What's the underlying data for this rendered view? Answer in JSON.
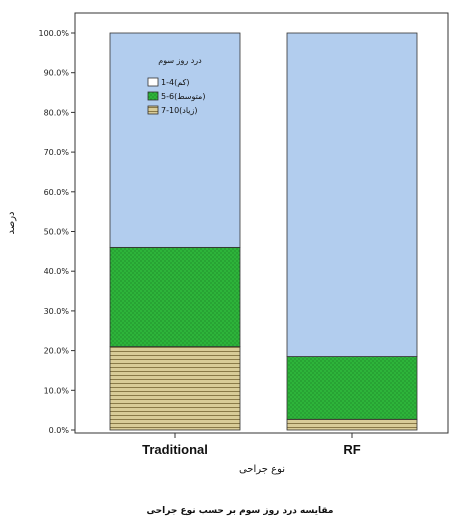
{
  "chart_data": {
    "type": "bar",
    "stacked": true,
    "categories": [
      "Traditional",
      "RF"
    ],
    "series": [
      {
        "name": "1-4(کم)",
        "values": [
          0,
          0
        ],
        "color": "#b2cdee"
      },
      {
        "name": "5-6(متوسط)",
        "values": [
          25.0,
          15.8
        ],
        "color": "#2db43a"
      },
      {
        "name": "7-10(زیاد)",
        "values": [
          21.0,
          2.7
        ],
        "color": "#cdbf8a"
      }
    ],
    "remainder_color": "#b2cdee",
    "yticks": [
      "0.0%",
      "10.0%",
      "20.0%",
      "30.0%",
      "40.0%",
      "50.0%",
      "60.0%",
      "70.0%",
      "80.0%",
      "90.0%",
      "100.0%"
    ],
    "ylim": [
      0,
      100
    ],
    "ylabel": "درصد",
    "xlabel": "نوع جراحی",
    "caption": "مقایسه درد روز سوم بر حسب نوع جراحی",
    "legend_title": "درد روز سوم",
    "legend_position": "inside top-left of first bar",
    "grid": false
  }
}
